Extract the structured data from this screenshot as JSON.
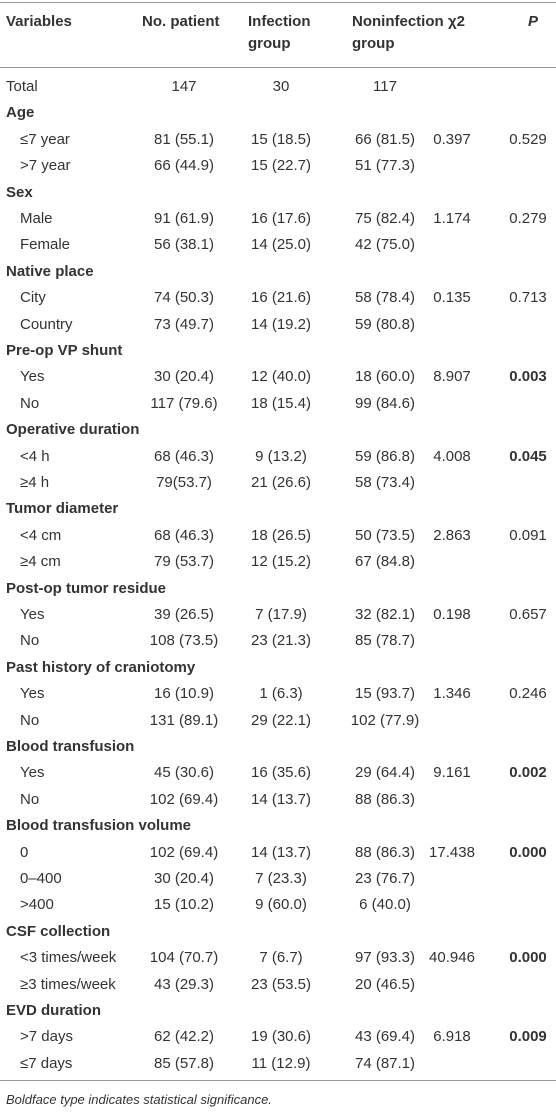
{
  "table": {
    "header": [
      "Variables",
      "No. patient",
      "Infection group",
      "Noninfection group",
      "χ2",
      "P"
    ],
    "rows": [
      {
        "label": "Total",
        "cells": [
          "147",
          "30",
          "117"
        ]
      },
      {
        "heading": "Age"
      },
      {
        "label": "≤7 year",
        "cells": [
          "81 (55.1)",
          "15 (18.5)",
          "66 (81.5)",
          "0.397",
          "0.529"
        ]
      },
      {
        "label": ">7 year",
        "cells": [
          "66 (44.9)",
          "15 (22.7)",
          "51 (77.3)"
        ]
      },
      {
        "heading": "Sex"
      },
      {
        "label": "Male",
        "cells": [
          "91 (61.9)",
          "16 (17.6)",
          "75 (82.4)",
          "1.174",
          "0.279"
        ]
      },
      {
        "label": "Female",
        "cells": [
          "56 (38.1)",
          "14 (25.0)",
          "42 (75.0)"
        ]
      },
      {
        "heading": "Native place"
      },
      {
        "label": "City",
        "cells": [
          "74 (50.3)",
          "16 (21.6)",
          "58 (78.4)",
          "0.135",
          "0.713"
        ]
      },
      {
        "label": "Country",
        "cells": [
          "73 (49.7)",
          "14 (19.2)",
          "59 (80.8)"
        ]
      },
      {
        "heading": "Pre-op VP shunt"
      },
      {
        "label": "Yes",
        "cells": [
          "30 (20.4)",
          "12 (40.0)",
          "18 (60.0)",
          "8.907",
          "0.003"
        ],
        "p_bold": true
      },
      {
        "label": "No",
        "cells": [
          "117 (79.6)",
          "18 (15.4)",
          "99 (84.6)"
        ]
      },
      {
        "heading": "Operative duration"
      },
      {
        "label": "<4 h",
        "cells": [
          "68 (46.3)",
          "9 (13.2)",
          "59 (86.8)",
          "4.008",
          "0.045"
        ],
        "p_bold": true
      },
      {
        "label": "≥4 h",
        "cells": [
          "79(53.7)",
          "21 (26.6)",
          "58 (73.4)"
        ]
      },
      {
        "heading": "Tumor diameter"
      },
      {
        "label": "<4 cm",
        "cells": [
          "68 (46.3)",
          "18 (26.5)",
          "50 (73.5)",
          "2.863",
          "0.091"
        ]
      },
      {
        "label": "≥4 cm",
        "cells": [
          "79 (53.7)",
          "12 (15.2)",
          "67 (84.8)"
        ]
      },
      {
        "heading": "Post-op tumor residue"
      },
      {
        "label": "Yes",
        "cells": [
          "39 (26.5)",
          "7 (17.9)",
          "32 (82.1)",
          "0.198",
          "0.657"
        ]
      },
      {
        "label": "No",
        "cells": [
          "108 (73.5)",
          "23 (21.3)",
          "85 (78.7)"
        ]
      },
      {
        "heading": "Past history of craniotomy"
      },
      {
        "label": "Yes",
        "cells": [
          "16 (10.9)",
          "1 (6.3)",
          "15 (93.7)",
          "1.346",
          "0.246"
        ]
      },
      {
        "label": "No",
        "cells": [
          "131 (89.1)",
          "29 (22.1)",
          "102 (77.9)"
        ]
      },
      {
        "heading": "Blood transfusion"
      },
      {
        "label": "Yes",
        "cells": [
          "45 (30.6)",
          "16 (35.6)",
          "29 (64.4)",
          "9.161",
          "0.002"
        ],
        "p_bold": true
      },
      {
        "label": "No",
        "cells": [
          "102 (69.4)",
          "14 (13.7)",
          "88 (86.3)"
        ]
      },
      {
        "heading": "Blood transfusion volume"
      },
      {
        "label": "0",
        "cells": [
          "102 (69.4)",
          "14 (13.7)",
          "88 (86.3)",
          "17.438",
          "0.000"
        ],
        "p_bold": true
      },
      {
        "label": "0–400",
        "cells": [
          "30 (20.4)",
          "7 (23.3)",
          "23 (76.7)"
        ]
      },
      {
        "label": ">400",
        "cells": [
          "15 (10.2)",
          "9 (60.0)",
          "6 (40.0)"
        ]
      },
      {
        "heading": "CSF collection"
      },
      {
        "label": "<3 times/week",
        "cells": [
          "104 (70.7)",
          "7 (6.7)",
          "97 (93.3)",
          "40.946",
          "0.000"
        ],
        "p_bold": true
      },
      {
        "label": "≥3 times/week",
        "cells": [
          "43 (29.3)",
          "23 (53.5)",
          "20 (46.5)"
        ]
      },
      {
        "heading": "EVD duration"
      },
      {
        "label": ">7 days",
        "cells": [
          "62 (42.2)",
          "19 (30.6)",
          "43 (69.4)",
          "6.918",
          "0.009"
        ],
        "p_bold": true
      },
      {
        "label": "≤7 days",
        "cells": [
          "85 (57.8)",
          "11 (12.9)",
          "74 (87.1)"
        ]
      }
    ],
    "footnote": "Boldface type indicates statistical significance."
  }
}
